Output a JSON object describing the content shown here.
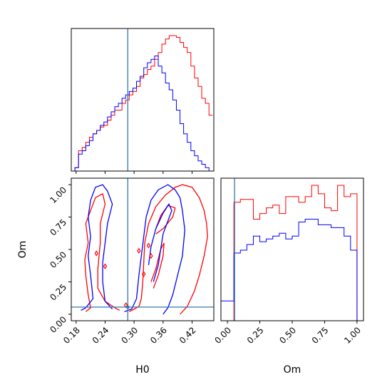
{
  "chart_data": {
    "type": "corner",
    "parameters": [
      "H0",
      "Om"
    ],
    "truths": {
      "H0": 0.287,
      "Om": 0.055
    },
    "colors": {
      "series_a": "#ff0000",
      "series_b": "#0000ff",
      "truth": "#3a77a8"
    },
    "xlim_H0": [
      0.17,
      0.465
    ],
    "xlim_Om": [
      -0.05,
      1.05
    ],
    "ylim_Om": [
      -0.05,
      1.05
    ],
    "H0_ticks": [
      "0.18",
      "0.24",
      "0.30",
      "0.36",
      "0.42"
    ],
    "H0_tick_values": [
      0.18,
      0.24,
      0.3,
      0.36,
      0.42
    ],
    "Om_ticks": [
      "0.00",
      "0.25",
      "0.50",
      "0.75",
      "1.00"
    ],
    "Om_tick_values": [
      0.0,
      0.25,
      0.5,
      0.75,
      1.0
    ],
    "xlabel_H0": "H0",
    "xlabel_Om": "Om",
    "ylabel_Om": "Om",
    "H0_histogram": {
      "bin_edges": [
        0.17,
        0.1775,
        0.185,
        0.1925,
        0.2,
        0.2075,
        0.215,
        0.2225,
        0.23,
        0.2375,
        0.245,
        0.2525,
        0.26,
        0.2675,
        0.275,
        0.2825,
        0.29,
        0.2975,
        0.305,
        0.3125,
        0.32,
        0.3275,
        0.335,
        0.3425,
        0.35,
        0.3575,
        0.365,
        0.3725,
        0.38,
        0.3875,
        0.395,
        0.4025,
        0.41,
        0.4175,
        0.425,
        0.4325,
        0.44,
        0.4475,
        0.455,
        0.4625
      ],
      "series": [
        {
          "color": "red",
          "values": [
            0,
            2,
            12,
            14,
            17,
            20,
            22,
            24,
            26,
            27,
            30,
            33,
            36,
            36,
            40,
            42,
            45,
            47,
            50,
            55,
            57,
            60,
            62,
            66,
            70,
            75,
            78,
            80,
            80,
            79,
            76,
            73,
            70,
            62,
            55,
            50,
            43,
            40,
            33
          ]
        },
        {
          "color": "blue",
          "values": [
            0,
            2,
            10,
            12,
            15,
            18,
            22,
            24,
            27,
            29,
            32,
            35,
            38,
            40,
            43,
            45,
            47,
            49,
            53,
            56,
            61,
            64,
            66,
            68,
            62,
            58,
            52,
            48,
            42,
            36,
            28,
            22,
            17,
            12,
            9,
            6,
            4,
            2,
            0
          ]
        }
      ]
    },
    "Om_histogram": {
      "bin_edges": [
        -0.05,
        0.0,
        0.05,
        0.1,
        0.15,
        0.2,
        0.25,
        0.3,
        0.35,
        0.4,
        0.45,
        0.5,
        0.55,
        0.6,
        0.65,
        0.7,
        0.75,
        0.8,
        0.85,
        0.9,
        0.95,
        1.0,
        1.05
      ],
      "series": [
        {
          "color": "red",
          "values": [
            0,
            0,
            42,
            43,
            43,
            36,
            38,
            40,
            41,
            38,
            44,
            44,
            42,
            44,
            48,
            45,
            40,
            39,
            48,
            44,
            45,
            0
          ]
        },
        {
          "color": "blue",
          "values": [
            7,
            7,
            24,
            25,
            27,
            30,
            28,
            29,
            30,
            31,
            29,
            30,
            35,
            36,
            36,
            34,
            34,
            33,
            33,
            30,
            25,
            0
          ]
        }
      ]
    },
    "contours_2d": [
      {
        "color": "red",
        "paths": [
          [
            [
              0.2,
              0.02
            ],
            [
              0.21,
              0.05
            ],
            [
              0.205,
              0.15
            ],
            [
              0.2,
              0.3
            ],
            [
              0.198,
              0.42
            ],
            [
              0.205,
              0.55
            ],
            [
              0.2,
              0.7
            ],
            [
              0.21,
              0.8
            ],
            [
              0.22,
              0.9
            ],
            [
              0.235,
              0.93
            ],
            [
              0.24,
              0.85
            ],
            [
              0.23,
              0.7
            ],
            [
              0.23,
              0.55
            ],
            [
              0.225,
              0.35
            ],
            [
              0.225,
              0.2
            ],
            [
              0.24,
              0.1
            ],
            [
              0.26,
              0.05
            ],
            [
              0.27,
              0.03
            ]
          ],
          [
            [
              0.29,
              0.02
            ],
            [
              0.31,
              0.06
            ],
            [
              0.315,
              0.12
            ],
            [
              0.318,
              0.25
            ],
            [
              0.32,
              0.4
            ],
            [
              0.322,
              0.55
            ],
            [
              0.33,
              0.7
            ],
            [
              0.345,
              0.83
            ],
            [
              0.365,
              0.92
            ],
            [
              0.385,
              0.98
            ],
            [
              0.4,
              1.0
            ],
            [
              0.42,
              0.98
            ],
            [
              0.435,
              0.9
            ],
            [
              0.445,
              0.8
            ],
            [
              0.45,
              0.7
            ],
            [
              0.452,
              0.6
            ],
            [
              0.445,
              0.45
            ],
            [
              0.435,
              0.3
            ],
            [
              0.425,
              0.18
            ],
            [
              0.41,
              0.06
            ],
            [
              0.395,
              0.0
            ]
          ],
          [
            [
              0.345,
              0.62
            ],
            [
              0.36,
              0.66
            ],
            [
              0.38,
              0.75
            ],
            [
              0.385,
              0.82
            ],
            [
              0.37,
              0.84
            ],
            [
              0.355,
              0.76
            ],
            [
              0.345,
              0.66
            ]
          ],
          [
            [
              0.34,
              0.2
            ],
            [
              0.35,
              0.3
            ],
            [
              0.36,
              0.45
            ],
            [
              0.362,
              0.55
            ],
            [
              0.355,
              0.5
            ],
            [
              0.345,
              0.35
            ],
            [
              0.335,
              0.25
            ]
          ]
        ]
      },
      {
        "color": "blue",
        "paths": [
          [
            [
              0.19,
              0.03
            ],
            [
              0.2,
              0.05
            ],
            [
              0.215,
              0.12
            ],
            [
              0.21,
              0.3
            ],
            [
              0.205,
              0.45
            ],
            [
              0.21,
              0.6
            ],
            [
              0.205,
              0.75
            ],
            [
              0.21,
              0.88
            ],
            [
              0.22,
              0.98
            ],
            [
              0.235,
              1.0
            ],
            [
              0.245,
              0.95
            ],
            [
              0.255,
              0.85
            ],
            [
              0.245,
              0.7
            ],
            [
              0.24,
              0.55
            ],
            [
              0.235,
              0.4
            ],
            [
              0.235,
              0.25
            ],
            [
              0.24,
              0.1
            ],
            [
              0.255,
              0.04
            ]
          ],
          [
            [
              0.28,
              0.02
            ],
            [
              0.295,
              0.04
            ],
            [
              0.305,
              0.12
            ],
            [
              0.31,
              0.3
            ],
            [
              0.315,
              0.45
            ],
            [
              0.32,
              0.6
            ],
            [
              0.325,
              0.75
            ],
            [
              0.335,
              0.88
            ],
            [
              0.35,
              0.96
            ],
            [
              0.37,
              1.0
            ],
            [
              0.385,
              0.96
            ],
            [
              0.395,
              0.9
            ],
            [
              0.4,
              0.8
            ],
            [
              0.405,
              0.65
            ],
            [
              0.4,
              0.45
            ],
            [
              0.39,
              0.3
            ],
            [
              0.38,
              0.15
            ],
            [
              0.37,
              0.05
            ],
            [
              0.36,
              0.0
            ]
          ],
          [
            [
              0.34,
              0.25
            ],
            [
              0.35,
              0.38
            ],
            [
              0.355,
              0.5
            ],
            [
              0.36,
              0.62
            ],
            [
              0.37,
              0.72
            ],
            [
              0.378,
              0.8
            ],
            [
              0.372,
              0.85
            ],
            [
              0.36,
              0.78
            ],
            [
              0.345,
              0.66
            ],
            [
              0.335,
              0.52
            ],
            [
              0.33,
              0.38
            ]
          ]
        ]
      }
    ]
  }
}
